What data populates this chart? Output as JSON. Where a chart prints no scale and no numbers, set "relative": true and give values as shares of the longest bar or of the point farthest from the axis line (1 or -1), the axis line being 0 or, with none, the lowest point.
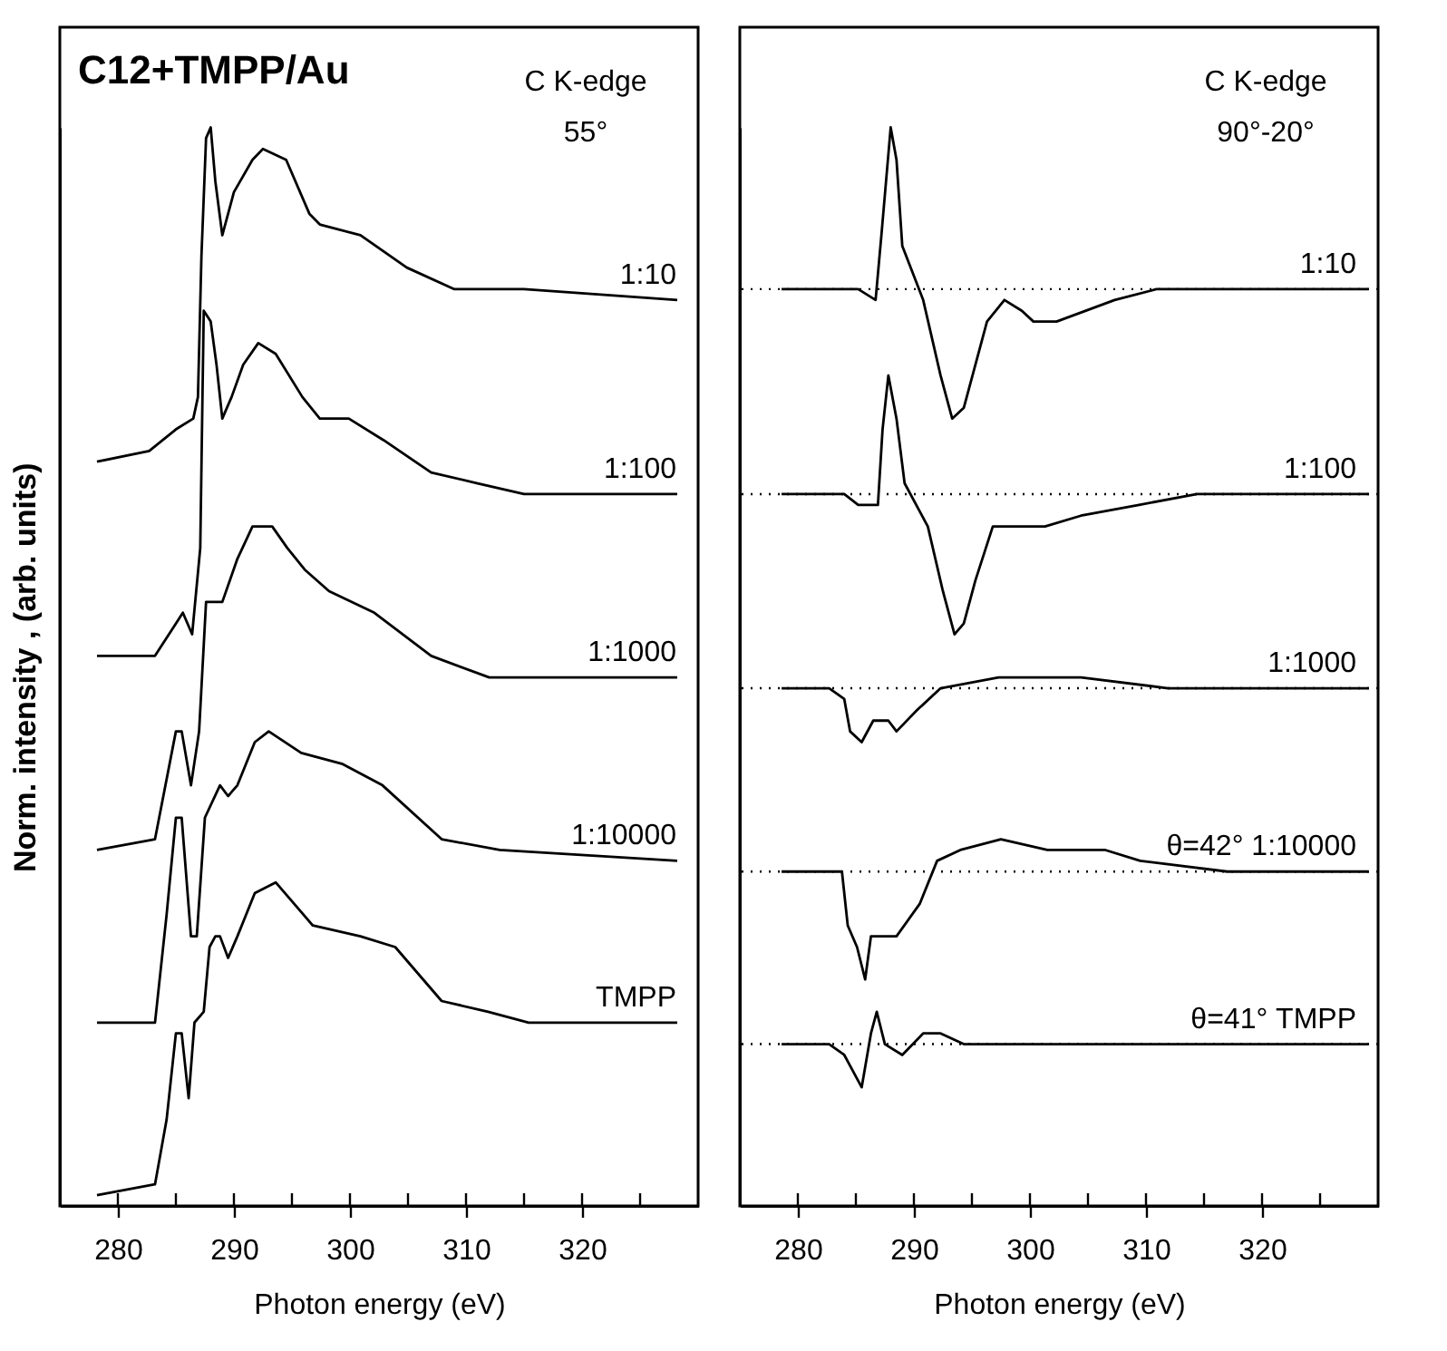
{
  "chart_data": [
    {
      "type": "line",
      "title": "C12+TMPP/Au",
      "annotations": [
        "C K-edge",
        "55°"
      ],
      "xlabel": "Photon energy (eV)",
      "ylabel": "Norm. intensity , (arb. units)",
      "relative": true,
      "tick_labels": "x",
      "xlim": [
        275,
        330
      ],
      "xticks": [
        280,
        {
          "value": 285,
          "label": null
        },
        290,
        {
          "value": 295,
          "label": null
        },
        300,
        {
          "value": 305,
          "label": null
        },
        310,
        {
          "value": 315,
          "label": null
        },
        320,
        {
          "value": 325,
          "label": null
        }
      ],
      "series": [
        {
          "name": "1:10",
          "color": "#000000",
          "x": [
            278.2,
            282.7,
            285.0,
            286.5,
            286.9,
            287.2,
            287.6,
            288.0,
            288.4,
            289.0,
            290.0,
            291.6,
            292.5,
            294.5,
            296.5,
            297.4,
            300.9,
            304.9,
            309.0,
            315.0,
            328.2
          ],
          "values": [
            0.69,
            0.7,
            0.72,
            0.73,
            0.75,
            0.88,
            0.99,
            1.0,
            0.95,
            0.9,
            0.94,
            0.97,
            0.98,
            0.97,
            0.92,
            0.91,
            0.9,
            0.87,
            0.85,
            0.85,
            0.84
          ]
        },
        {
          "name": "1:100",
          "color": "#000000",
          "x": [
            278.2,
            283.2,
            285.0,
            285.6,
            286.4,
            287.1,
            287.4,
            288.0,
            288.5,
            289.0,
            289.8,
            290.8,
            292.1,
            293.6,
            295.9,
            297.4,
            299.9,
            302.9,
            307.0,
            311.0,
            315.0,
            328.2
          ],
          "values": [
            0.51,
            0.51,
            0.54,
            0.55,
            0.53,
            0.61,
            0.83,
            0.82,
            0.78,
            0.73,
            0.75,
            0.78,
            0.8,
            0.79,
            0.75,
            0.73,
            0.73,
            0.71,
            0.68,
            0.67,
            0.66,
            0.66
          ]
        },
        {
          "name": "1:1000",
          "color": "#000000",
          "x": [
            278.2,
            283.2,
            285.0,
            285.5,
            286.3,
            287.0,
            287.6,
            289.0,
            290.3,
            291.6,
            293.3,
            294.6,
            296.1,
            298.2,
            302.1,
            307.0,
            312.0,
            328.2
          ],
          "values": [
            0.33,
            0.34,
            0.44,
            0.44,
            0.39,
            0.44,
            0.56,
            0.56,
            0.6,
            0.63,
            0.63,
            0.61,
            0.59,
            0.57,
            0.55,
            0.51,
            0.49,
            0.49
          ]
        },
        {
          "name": "1:10000",
          "color": "#000000",
          "x": [
            278.2,
            283.2,
            284.2,
            285.0,
            285.5,
            286.3,
            286.8,
            287.5,
            288.8,
            289.5,
            290.3,
            291.8,
            293.0,
            295.8,
            299.3,
            302.8,
            307.9,
            312.9,
            328.2
          ],
          "values": [
            0.17,
            0.17,
            0.27,
            0.36,
            0.36,
            0.25,
            0.25,
            0.36,
            0.39,
            0.38,
            0.39,
            0.43,
            0.44,
            0.42,
            0.41,
            0.39,
            0.34,
            0.33,
            0.32
          ]
        },
        {
          "name": "TMPP",
          "color": "#000000",
          "x": [
            278.2,
            283.2,
            284.2,
            285.0,
            285.5,
            286.1,
            286.6,
            287.4,
            287.9,
            288.4,
            288.8,
            289.5,
            290.3,
            291.8,
            293.6,
            296.8,
            300.9,
            303.9,
            307.9,
            311.9,
            315.4,
            328.2
          ],
          "values": [
            0.01,
            0.02,
            0.08,
            0.16,
            0.16,
            0.1,
            0.17,
            0.18,
            0.24,
            0.25,
            0.25,
            0.23,
            0.25,
            0.29,
            0.3,
            0.26,
            0.25,
            0.24,
            0.19,
            0.18,
            0.17,
            0.17
          ]
        }
      ]
    },
    {
      "type": "line",
      "annotations": [
        "C K-edge",
        "90°-20°"
      ],
      "xlabel": "Photon energy (eV)",
      "relative": true,
      "tick_labels": "x",
      "xlim": [
        275,
        330
      ],
      "xticks": [
        280,
        {
          "value": 285,
          "label": null
        },
        290,
        {
          "value": 295,
          "label": null
        },
        300,
        {
          "value": 305,
          "label": null
        },
        310,
        {
          "value": 315,
          "label": null
        },
        320,
        {
          "value": 325,
          "label": null
        }
      ],
      "ref_lines": [
        {
          "axis": "y",
          "value": 0.85,
          "color": "#000000",
          "line_style": "dotted"
        },
        {
          "axis": "y",
          "value": 0.66,
          "color": "#000000",
          "line_style": "dotted"
        },
        {
          "axis": "y",
          "value": 0.48,
          "color": "#000000",
          "line_style": "dotted"
        },
        {
          "axis": "y",
          "value": 0.31,
          "color": "#000000",
          "line_style": "dotted"
        },
        {
          "axis": "y",
          "value": 0.15,
          "color": "#000000",
          "line_style": "dotted"
        }
      ],
      "series": [
        {
          "name": "1:10",
          "color": "#000000",
          "x": [
            278.6,
            285.2,
            286.7,
            287.2,
            288.0,
            288.5,
            289.0,
            290.8,
            292.3,
            293.3,
            294.3,
            296.3,
            297.8,
            299.3,
            300.3,
            302.3,
            307.3,
            310.9,
            329.2
          ],
          "values": [
            0.85,
            0.85,
            0.84,
            0.9,
            1.0,
            0.97,
            0.89,
            0.84,
            0.77,
            0.73,
            0.74,
            0.82,
            0.84,
            0.83,
            0.82,
            0.82,
            0.84,
            0.85,
            0.85
          ]
        },
        {
          "name": "1:100",
          "color": "#000000",
          "x": [
            278.6,
            284.0,
            285.2,
            286.9,
            287.3,
            287.8,
            288.5,
            289.2,
            291.2,
            292.5,
            293.5,
            294.3,
            295.3,
            296.8,
            298.8,
            301.3,
            304.4,
            309.4,
            314.4,
            319.4,
            329.2
          ],
          "values": [
            0.66,
            0.66,
            0.65,
            0.65,
            0.72,
            0.77,
            0.73,
            0.67,
            0.63,
            0.57,
            0.53,
            0.54,
            0.58,
            0.63,
            0.63,
            0.63,
            0.64,
            0.65,
            0.66,
            0.66,
            0.66
          ]
        },
        {
          "name": "1:1000",
          "color": "#000000",
          "x": [
            278.6,
            282.7,
            284.0,
            284.5,
            285.5,
            286.5,
            287.8,
            288.5,
            290.3,
            292.3,
            297.3,
            304.4,
            311.9,
            319.4,
            329.2
          ],
          "values": [
            0.48,
            0.48,
            0.47,
            0.44,
            0.43,
            0.45,
            0.45,
            0.44,
            0.46,
            0.48,
            0.49,
            0.49,
            0.48,
            0.48,
            0.48
          ]
        },
        {
          "name": "θ=42°   1:10000",
          "color": "#000000",
          "x": [
            278.6,
            283.8,
            284.3,
            285.1,
            285.8,
            286.3,
            287.3,
            288.5,
            290.5,
            292.0,
            294.0,
            297.5,
            301.5,
            306.5,
            309.5,
            317.0,
            319.4,
            329.2
          ],
          "values": [
            0.31,
            0.31,
            0.26,
            0.24,
            0.21,
            0.25,
            0.25,
            0.25,
            0.28,
            0.32,
            0.33,
            0.34,
            0.33,
            0.33,
            0.32,
            0.31,
            0.31,
            0.31
          ]
        },
        {
          "name": "θ=41°   TMPP",
          "color": "#000000",
          "x": [
            278.6,
            282.7,
            284.0,
            284.5,
            285.5,
            286.3,
            286.8,
            287.5,
            289.0,
            290.8,
            292.3,
            294.3,
            304.4,
            319.4,
            329.2
          ],
          "values": [
            0.15,
            0.15,
            0.14,
            0.13,
            0.11,
            0.16,
            0.18,
            0.15,
            0.14,
            0.16,
            0.16,
            0.15,
            0.15,
            0.15,
            0.15
          ]
        }
      ]
    }
  ]
}
